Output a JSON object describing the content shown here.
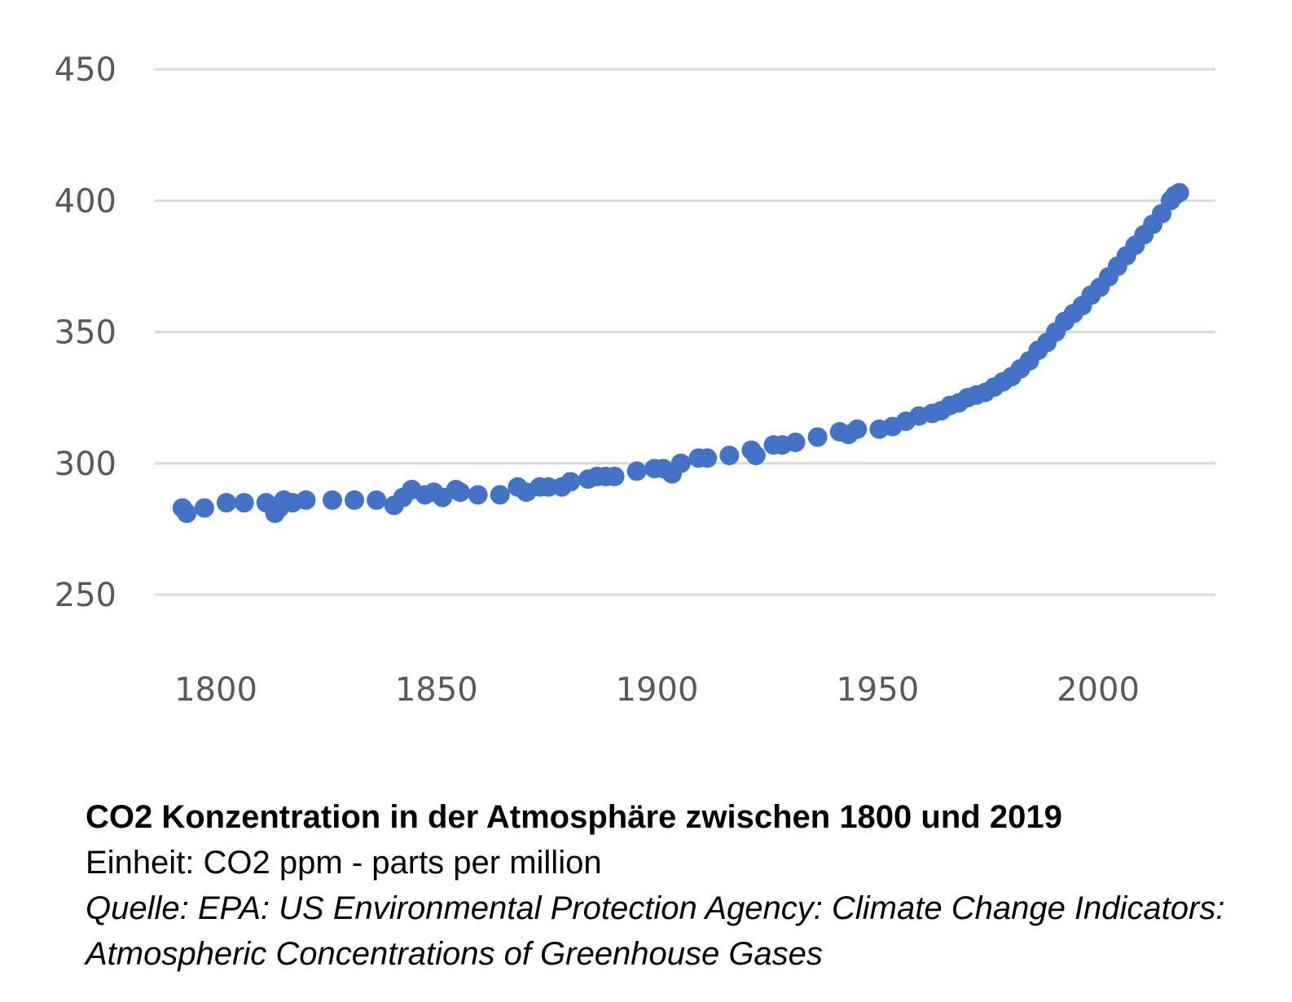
{
  "chart_data": {
    "type": "scatter",
    "title": "CO2 Konzentration in der Atmosphäre zwischen 1800 und 2019",
    "xlabel": "",
    "ylabel": "",
    "xlim": [
      1790,
      2030
    ],
    "ylim": [
      250,
      450
    ],
    "x_ticks": [
      "1800",
      "1850",
      "1900",
      "1950",
      "2000"
    ],
    "y_ticks": [
      "250",
      "300",
      "350",
      "400",
      "450"
    ],
    "grid": "horizontal",
    "color": "#4472C4",
    "points": [
      [
        1790,
        283
      ],
      [
        1791,
        281
      ],
      [
        1795,
        283
      ],
      [
        1800,
        285
      ],
      [
        1804,
        285
      ],
      [
        1809,
        285
      ],
      [
        1811,
        281
      ],
      [
        1812,
        283
      ],
      [
        1813,
        286
      ],
      [
        1815,
        285
      ],
      [
        1818,
        286
      ],
      [
        1824,
        286
      ],
      [
        1829,
        286
      ],
      [
        1834,
        286
      ],
      [
        1838,
        284
      ],
      [
        1840,
        287
      ],
      [
        1842,
        290
      ],
      [
        1845,
        288
      ],
      [
        1847,
        289
      ],
      [
        1849,
        287
      ],
      [
        1852,
        290
      ],
      [
        1853,
        289
      ],
      [
        1857,
        288
      ],
      [
        1862,
        288
      ],
      [
        1866,
        291
      ],
      [
        1868,
        289
      ],
      [
        1871,
        291
      ],
      [
        1873,
        291
      ],
      [
        1876,
        291
      ],
      [
        1878,
        293
      ],
      [
        1882,
        294
      ],
      [
        1884,
        295
      ],
      [
        1886,
        295
      ],
      [
        1888,
        295
      ],
      [
        1893,
        297
      ],
      [
        1897,
        298
      ],
      [
        1899,
        298
      ],
      [
        1901,
        296
      ],
      [
        1903,
        300
      ],
      [
        1907,
        302
      ],
      [
        1909,
        302
      ],
      [
        1914,
        303
      ],
      [
        1919,
        305
      ],
      [
        1920,
        303
      ],
      [
        1924,
        307
      ],
      [
        1926,
        307
      ],
      [
        1929,
        308
      ],
      [
        1934,
        310
      ],
      [
        1939,
        312
      ],
      [
        1941,
        311
      ],
      [
        1943,
        313
      ],
      [
        1948,
        313
      ],
      [
        1951,
        314
      ],
      [
        1954,
        316
      ],
      [
        1957,
        318
      ],
      [
        1960,
        319
      ],
      [
        1962,
        320
      ],
      [
        1964,
        322
      ],
      [
        1966,
        323
      ],
      [
        1968,
        325
      ],
      [
        1970,
        326
      ],
      [
        1972,
        327
      ],
      [
        1974,
        329
      ],
      [
        1976,
        331
      ],
      [
        1978,
        333
      ],
      [
        1980,
        336
      ],
      [
        1982,
        339
      ],
      [
        1984,
        343
      ],
      [
        1986,
        346
      ],
      [
        1988,
        350
      ],
      [
        1990,
        354
      ],
      [
        1992,
        357
      ],
      [
        1994,
        360
      ],
      [
        1996,
        364
      ],
      [
        1998,
        367
      ],
      [
        2000,
        371
      ],
      [
        2002,
        375
      ],
      [
        2004,
        379
      ],
      [
        2006,
        383
      ],
      [
        2008,
        387
      ],
      [
        2010,
        391
      ],
      [
        2012,
        395
      ],
      [
        2014,
        400
      ],
      [
        2015,
        402
      ],
      [
        2016,
        403
      ]
    ]
  },
  "caption": {
    "title": "CO2 Konzentration in der Atmosphäre zwischen 1800 und 2019",
    "unit": "Einheit: CO2 ppm - parts per million",
    "source": "Quelle: EPA: US Environmental Protection Agency: Climate Change Indicators: Atmospheric Concentrations of Greenhouse Gases"
  }
}
